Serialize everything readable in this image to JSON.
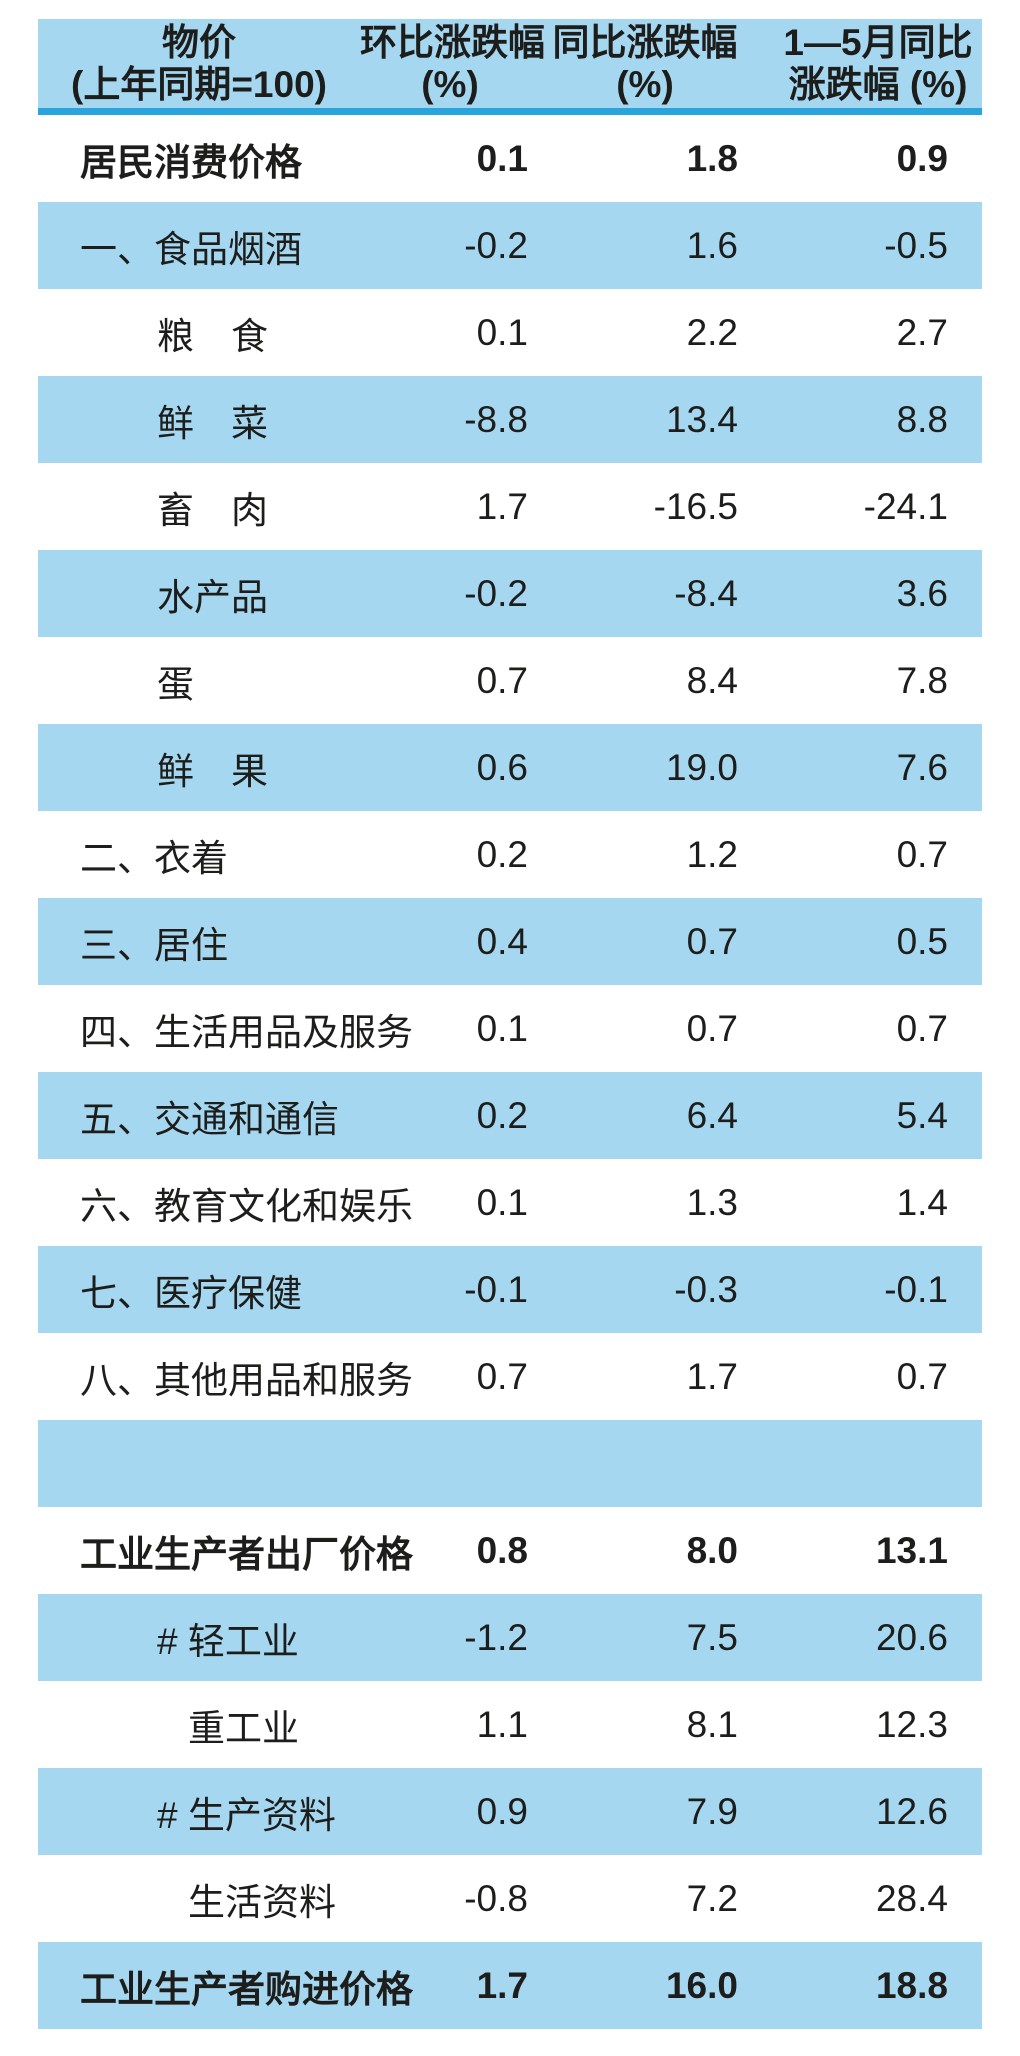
{
  "colors": {
    "row_blue": "#a5d8f0",
    "header_rule": "#2aa4dc",
    "text": "#1d1d1b",
    "background": "#ffffff"
  },
  "chart_data": {
    "type": "table",
    "title_lines": [
      "物价",
      "(上年同期=100)"
    ],
    "columns": [
      {
        "line1": "环比涨跌幅",
        "line2": "(%)"
      },
      {
        "line1": "同比涨跌幅",
        "line2": "(%)"
      },
      {
        "line1": "1—5月同比",
        "line2": "涨跌幅 (%)"
      }
    ],
    "legend_position": "none",
    "grid": false,
    "rows": [
      {
        "label": "居民消费价格",
        "values": [
          "0.1",
          "1.8",
          "0.9"
        ],
        "indent": 0,
        "bold": true,
        "shade": "white",
        "spacer": false
      },
      {
        "label": "一、食品烟酒",
        "values": [
          "-0.2",
          "1.6",
          "-0.5"
        ],
        "indent": 1,
        "bold": false,
        "shade": "blue",
        "spacer": false
      },
      {
        "label": "粮　食",
        "values": [
          "0.1",
          "2.2",
          "2.7"
        ],
        "indent": 2,
        "bold": false,
        "shade": "white",
        "spacer": false
      },
      {
        "label": "鲜　菜",
        "values": [
          "-8.8",
          "13.4",
          "8.8"
        ],
        "indent": 2,
        "bold": false,
        "shade": "blue",
        "spacer": false
      },
      {
        "label": "畜　肉",
        "values": [
          "1.7",
          "-16.5",
          "-24.1"
        ],
        "indent": 2,
        "bold": false,
        "shade": "white",
        "spacer": false
      },
      {
        "label": "水产品",
        "values": [
          "-0.2",
          "-8.4",
          "3.6"
        ],
        "indent": 2,
        "bold": false,
        "shade": "blue",
        "spacer": false
      },
      {
        "label": "蛋",
        "values": [
          "0.7",
          "8.4",
          "7.8"
        ],
        "indent": 2,
        "bold": false,
        "shade": "white",
        "spacer": false
      },
      {
        "label": "鲜　果",
        "values": [
          "0.6",
          "19.0",
          "7.6"
        ],
        "indent": 2,
        "bold": false,
        "shade": "blue",
        "spacer": false
      },
      {
        "label": "二、衣着",
        "values": [
          "0.2",
          "1.2",
          "0.7"
        ],
        "indent": 1,
        "bold": false,
        "shade": "white",
        "spacer": false
      },
      {
        "label": "三、居住",
        "values": [
          "0.4",
          "0.7",
          "0.5"
        ],
        "indent": 1,
        "bold": false,
        "shade": "blue",
        "spacer": false
      },
      {
        "label": "四、生活用品及服务",
        "values": [
          "0.1",
          "0.7",
          "0.7"
        ],
        "indent": 1,
        "bold": false,
        "shade": "white",
        "spacer": false
      },
      {
        "label": "五、交通和通信",
        "values": [
          "0.2",
          "6.4",
          "5.4"
        ],
        "indent": 1,
        "bold": false,
        "shade": "blue",
        "spacer": false
      },
      {
        "label": "六、教育文化和娱乐",
        "values": [
          "0.1",
          "1.3",
          "1.4"
        ],
        "indent": 1,
        "bold": false,
        "shade": "white",
        "spacer": false
      },
      {
        "label": "七、医疗保健",
        "values": [
          "-0.1",
          "-0.3",
          "-0.1"
        ],
        "indent": 1,
        "bold": false,
        "shade": "blue",
        "spacer": false
      },
      {
        "label": "八、其他用品和服务",
        "values": [
          "0.7",
          "1.7",
          "0.7"
        ],
        "indent": 1,
        "bold": false,
        "shade": "white",
        "spacer": false
      },
      {
        "label": "",
        "values": [
          "",
          "",
          ""
        ],
        "indent": 0,
        "bold": false,
        "shade": "blue",
        "spacer": true
      },
      {
        "label": "工业生产者出厂价格",
        "values": [
          "0.8",
          "8.0",
          "13.1"
        ],
        "indent": 0,
        "bold": true,
        "shade": "white",
        "spacer": false
      },
      {
        "label": "# 轻工业",
        "values": [
          "-1.2",
          "7.5",
          "20.6"
        ],
        "indent": 2,
        "bold": false,
        "shade": "blue",
        "spacer": false
      },
      {
        "label": "重工业",
        "values": [
          "1.1",
          "8.1",
          "12.3"
        ],
        "indent": 3,
        "bold": false,
        "shade": "white",
        "spacer": false
      },
      {
        "label": "# 生产资料",
        "values": [
          "0.9",
          "7.9",
          "12.6"
        ],
        "indent": 2,
        "bold": false,
        "shade": "blue",
        "spacer": false
      },
      {
        "label": "生活资料",
        "values": [
          "-0.8",
          "7.2",
          "28.4"
        ],
        "indent": 3,
        "bold": false,
        "shade": "white",
        "spacer": false
      },
      {
        "label": "工业生产者购进价格",
        "values": [
          "1.7",
          "16.0",
          "18.8"
        ],
        "indent": 0,
        "bold": true,
        "shade": "blue",
        "spacer": false
      }
    ]
  }
}
